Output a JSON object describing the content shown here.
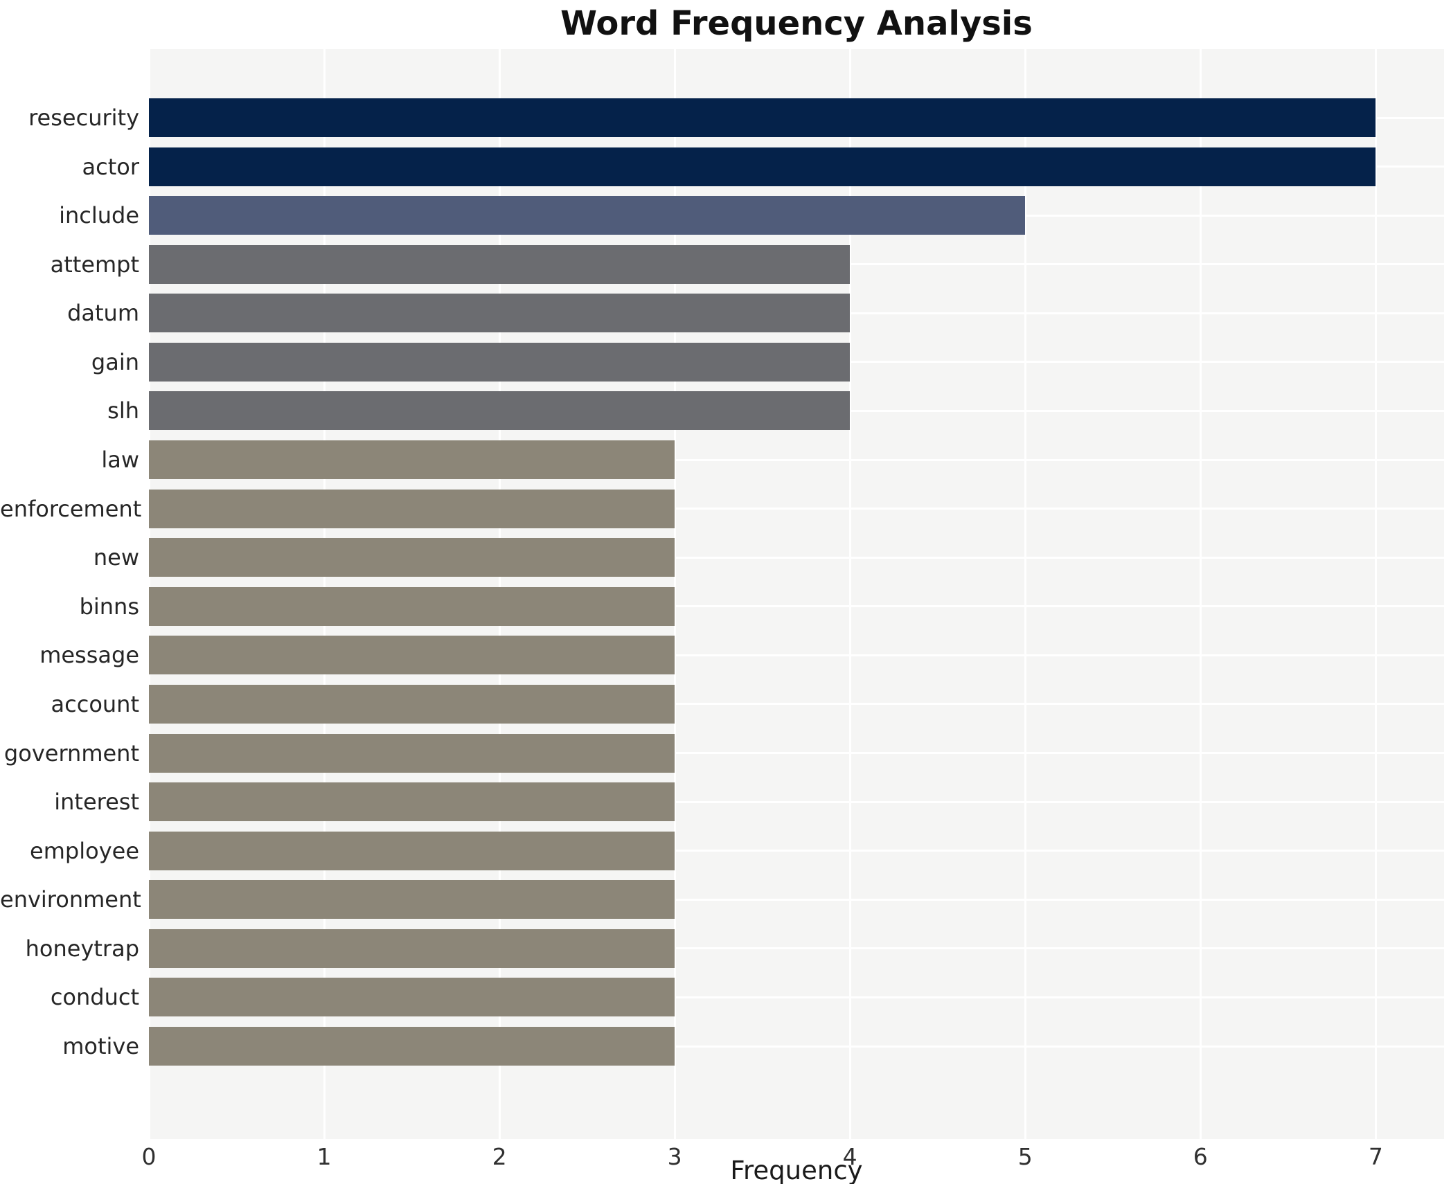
{
  "chart_data": {
    "type": "bar",
    "orientation": "horizontal",
    "title": "Word Frequency Analysis",
    "xlabel": "Frequency",
    "ylabel": "",
    "categories": [
      "resecurity",
      "actor",
      "include",
      "attempt",
      "datum",
      "gain",
      "slh",
      "law",
      "enforcement",
      "new",
      "binns",
      "message",
      "account",
      "government",
      "interest",
      "employee",
      "environment",
      "honeytrap",
      "conduct",
      "motive"
    ],
    "values": [
      7,
      7,
      5,
      4,
      4,
      4,
      4,
      3,
      3,
      3,
      3,
      3,
      3,
      3,
      3,
      3,
      3,
      3,
      3,
      3
    ],
    "xticks": [
      0,
      1,
      2,
      3,
      4,
      5,
      6,
      7
    ],
    "xlim": [
      0,
      7.39
    ],
    "grid": true,
    "legend": false,
    "colors": {
      "bar_by_value": {
        "7": "#05224a",
        "5": "#505c7a",
        "4": "#6b6c70",
        "3": "#8c8678"
      },
      "plot_background": "#f5f5f4",
      "gridline": "#ffffff",
      "figure_background": "#ffffff",
      "title_text": "#111111",
      "label_text": "#262626",
      "tick_text": "#303030"
    }
  }
}
